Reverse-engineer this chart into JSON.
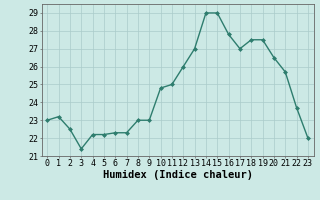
{
  "x": [
    0,
    1,
    2,
    3,
    4,
    5,
    6,
    7,
    8,
    9,
    10,
    11,
    12,
    13,
    14,
    15,
    16,
    17,
    18,
    19,
    20,
    21,
    22,
    23
  ],
  "y": [
    23.0,
    23.2,
    22.5,
    21.4,
    22.2,
    22.2,
    22.3,
    22.3,
    23.0,
    23.0,
    24.8,
    25.0,
    26.0,
    27.0,
    29.0,
    29.0,
    27.8,
    27.0,
    27.5,
    27.5,
    26.5,
    25.7,
    23.7,
    22.0
  ],
  "line_color": "#2e7d6e",
  "marker": "D",
  "marker_size": 2,
  "bg_color": "#cce9e5",
  "grid_color": "#aaccca",
  "xlabel": "Humidex (Indice chaleur)",
  "ylim": [
    21,
    29.5
  ],
  "xlim": [
    -0.5,
    23.5
  ],
  "yticks": [
    21,
    22,
    23,
    24,
    25,
    26,
    27,
    28,
    29
  ],
  "xticks": [
    0,
    1,
    2,
    3,
    4,
    5,
    6,
    7,
    8,
    9,
    10,
    11,
    12,
    13,
    14,
    15,
    16,
    17,
    18,
    19,
    20,
    21,
    22,
    23
  ],
  "tick_label_fontsize": 6,
  "xlabel_fontsize": 7.5,
  "linewidth": 1.0
}
